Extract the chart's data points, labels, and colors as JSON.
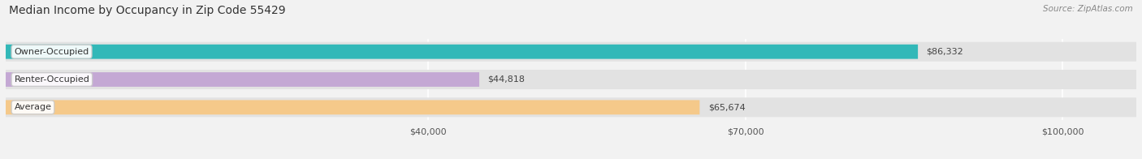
{
  "title": "Median Income by Occupancy in Zip Code 55429",
  "source": "Source: ZipAtlas.com",
  "categories": [
    "Owner-Occupied",
    "Renter-Occupied",
    "Average"
  ],
  "values": [
    86332,
    44818,
    65674
  ],
  "bar_colors": [
    "#32b8b8",
    "#c4a8d4",
    "#f5c98a"
  ],
  "label_values": [
    "$86,332",
    "$44,818",
    "$65,674"
  ],
  "xlim": [
    0,
    107000
  ],
  "xticks": [
    40000,
    70000,
    100000
  ],
  "xtick_labels": [
    "$40,000",
    "$70,000",
    "$100,000"
  ],
  "background_color": "#f2f2f2",
  "bar_bg_color": "#e2e2e2",
  "title_fontsize": 10,
  "source_fontsize": 7.5,
  "bar_label_fontsize": 8,
  "category_label_fontsize": 8,
  "tick_fontsize": 8,
  "bar_height": 0.52
}
